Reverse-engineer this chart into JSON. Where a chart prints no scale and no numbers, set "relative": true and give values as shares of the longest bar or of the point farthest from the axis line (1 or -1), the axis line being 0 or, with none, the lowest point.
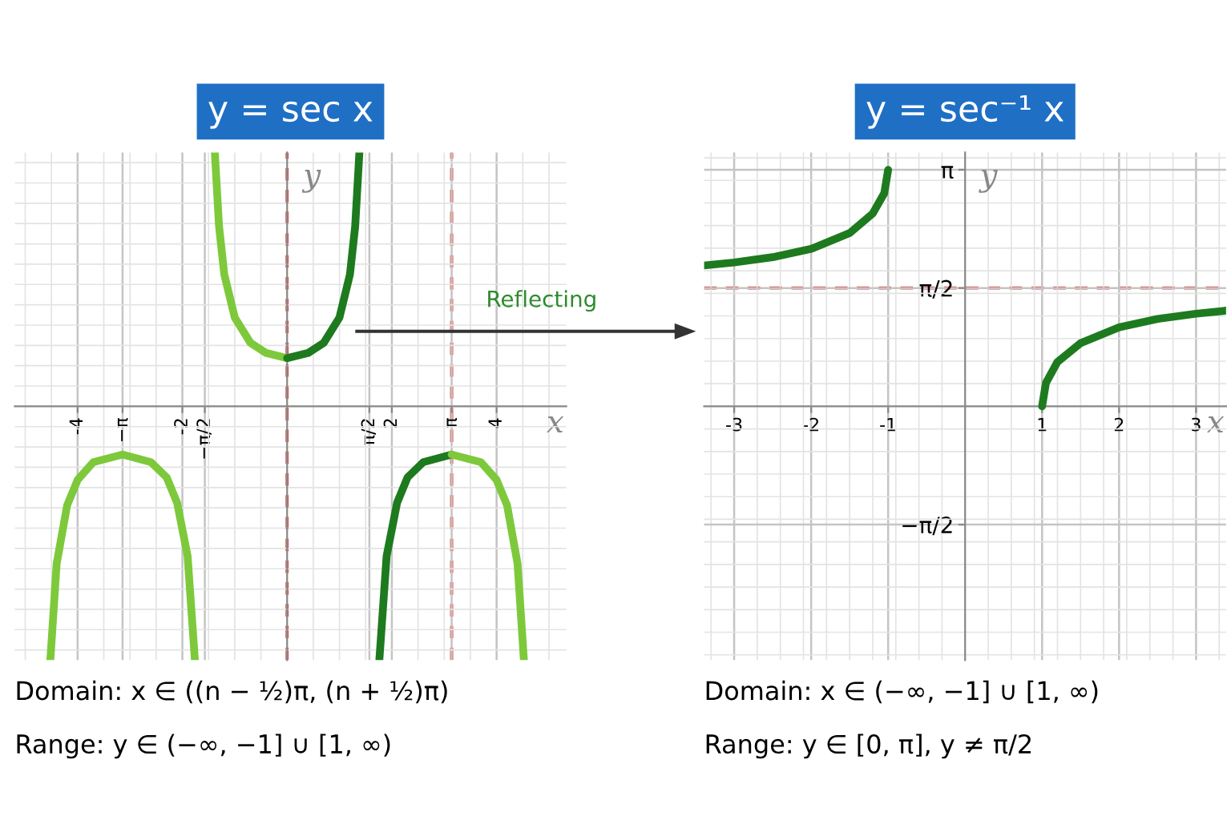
{
  "chart_data": [
    {
      "type": "line",
      "title": "y = sec x",
      "xlabel": "x",
      "ylabel": "y",
      "relative": true,
      "grid": true,
      "legend": false,
      "marker": "none",
      "line_style": "solid",
      "xlim": [
        -5.2,
        5.33
      ],
      "xticks": [
        -4,
        -2,
        2,
        4,
        {
          "value": -3.1416,
          "label": "−π"
        },
        {
          "value": -1.5708,
          "label": "−π/2"
        },
        {
          "value": 1.5708,
          "label": "π/2"
        },
        {
          "value": 3.1416,
          "label": "π"
        }
      ],
      "series": [
        {
          "color": "#7dc93b",
          "x": [
            -4.521,
            -4.4,
            -4.2,
            -4.0,
            -3.7,
            -3.1416,
            -2.6,
            -2.3,
            -2.1,
            -1.9,
            -1.761
          ],
          "values": [
            -1,
            -0.62,
            -0.39,
            -0.29,
            -0.22,
            -0.19,
            -0.22,
            -0.28,
            -0.38,
            -0.59,
            -1
          ]
        },
        {
          "color": "#7dc93b",
          "x": [
            -1.38,
            -1.3,
            -1.2,
            -1.0,
            -0.7,
            -0.4,
            0
          ],
          "values": [
            1,
            0.71,
            0.52,
            0.35,
            0.25,
            0.21,
            0.19
          ]
        },
        {
          "color": "#1e7a1e",
          "x": [
            0,
            0.4,
            0.7,
            1.0,
            1.2,
            1.3,
            1.38
          ],
          "values": [
            0.19,
            0.21,
            0.25,
            0.35,
            0.52,
            0.71,
            1
          ]
        },
        {
          "color": "#1e7a1e",
          "x": [
            1.761,
            1.9,
            2.1,
            2.3,
            2.6,
            3.1416
          ],
          "values": [
            -1,
            -0.59,
            -0.38,
            -0.28,
            -0.22,
            -0.19
          ]
        },
        {
          "color": "#7dc93b",
          "x": [
            3.1416,
            3.7,
            4.0,
            4.2,
            4.4,
            4.521
          ],
          "values": [
            -0.19,
            -0.22,
            -0.29,
            -0.39,
            -0.62,
            -1
          ]
        }
      ],
      "ref_lines": [
        {
          "axis": "x",
          "value": 0,
          "color": "#e0403a",
          "line_style": "dashed"
        },
        {
          "axis": "x",
          "value": 3.1416,
          "color": "#e0403a",
          "line_style": "dashed"
        }
      ],
      "annotations": [
        "Reflecting",
        "Domain: x ∈ ((n − ½)π, (n + ½)π)",
        "Range: y ∈ (−∞, −1] ∪ [1, ∞)"
      ]
    },
    {
      "type": "line",
      "title": "y = sec⁻¹ x",
      "xlabel": "x",
      "ylabel": "y",
      "grid": true,
      "legend": false,
      "marker": "none",
      "line_style": "solid",
      "xlim": [
        -3.39,
        3.39
      ],
      "ylim": [
        -3.37,
        3.37
      ],
      "xticks": [
        -3,
        -2,
        -1,
        1,
        2,
        3
      ],
      "yticks": [
        {
          "value": 3.1416,
          "label": "π"
        },
        {
          "value": 1.5708,
          "label": "π/2"
        },
        {
          "value": -1.5708,
          "label": "−π/2"
        }
      ],
      "series": [
        {
          "color": "#1e7a1e",
          "x": [
            -3.39,
            -3,
            -2.5,
            -2,
            -1.5,
            -1.2,
            -1.05,
            -1
          ],
          "values": [
            1.87,
            1.91,
            1.98,
            2.09,
            2.3,
            2.56,
            2.83,
            3.14
          ]
        },
        {
          "color": "#1e7a1e",
          "x": [
            1,
            1.05,
            1.2,
            1.5,
            2,
            2.5,
            3,
            3.39
          ],
          "values": [
            0,
            0.31,
            0.59,
            0.84,
            1.05,
            1.16,
            1.23,
            1.27
          ]
        }
      ],
      "ref_lines": [
        {
          "axis": "y",
          "value": 1.5708,
          "color": "#e0403a",
          "line_style": "dashed"
        }
      ],
      "annotations": [
        "Domain: x ∈ (−∞, −1] ∪ [1, ∞)",
        "Range: y ∈ [0, π], y ≠ π/2"
      ]
    }
  ]
}
